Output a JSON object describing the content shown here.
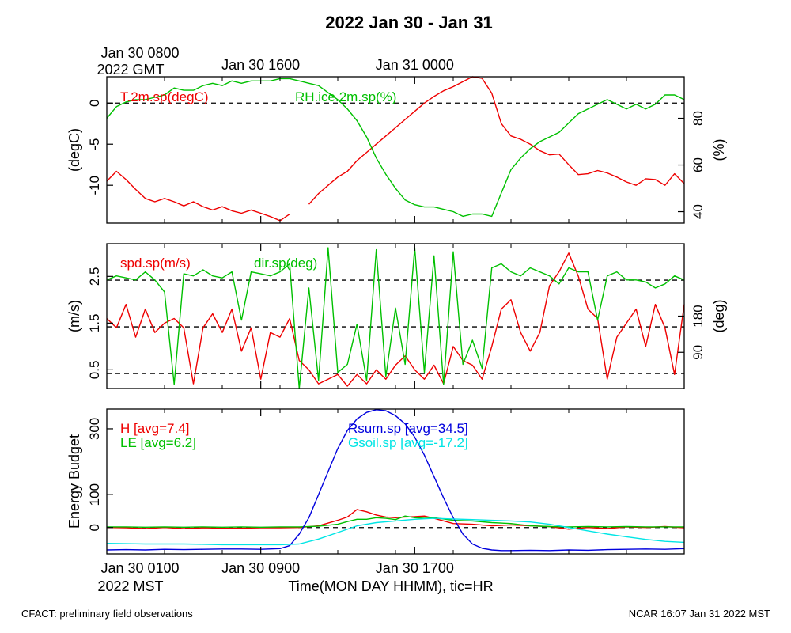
{
  "title": "2022 Jan 30 - Jan 31",
  "top_time_axis": {
    "start_label_line1": "Jan 30 0800",
    "start_label_line2": "2022 GMT",
    "labels": [
      "Jan 30 1600",
      "Jan 31 0000"
    ]
  },
  "bottom_time_axis": {
    "start_label_line1": "Jan 30 0100",
    "start_label_line2": "2022 MST",
    "labels": [
      "Jan 30 0900",
      "Jan 30 1700"
    ],
    "title": "Time(MON DAY HHMM), tic=HR"
  },
  "footer": {
    "left": "CFACT: preliminary field observations",
    "right": "NCAR 16:07 Jan 31 2022 MST"
  },
  "colors": {
    "red": "#ee0000",
    "green": "#00c000",
    "blue": "#0000dd",
    "cyan": "#00e5e5",
    "black": "#000000"
  },
  "chart_data": [
    {
      "type": "line",
      "panel": "temperature-humidity",
      "x_unit": "hours since Jan 30 0100 MST",
      "xlim": [
        0,
        30
      ],
      "ylabel_left": "(degC)",
      "ylabel_right": "(%)",
      "ylim_left": [
        -14.6,
        3.2
      ],
      "ylim_right": [
        35.1,
        97.8
      ],
      "yticks_left": [
        0,
        -5,
        -10
      ],
      "yticks_right": [
        80,
        60,
        40
      ],
      "reference_lines_left": [
        0
      ],
      "series": [
        {
          "name": "T.2m.sp(degC)",
          "axis": "left",
          "color": "#ee0000",
          "x": [
            0,
            0.5,
            1,
            1.5,
            2,
            2.5,
            3,
            3.5,
            4,
            4.5,
            5,
            5.5,
            6,
            6.5,
            7,
            7.5,
            8,
            8.5,
            9,
            9.5,
            10,
            10.5,
            11,
            11.5,
            12,
            12.5,
            13,
            13.5,
            14,
            14.5,
            15,
            15.5,
            16,
            16.5,
            17,
            17.5,
            18,
            18.5,
            19,
            19.5,
            20,
            20.5,
            21,
            21.5,
            22,
            22.5,
            23,
            23.5,
            24,
            24.5,
            25,
            25.5,
            26,
            26.5,
            27,
            27.5,
            28,
            28.5,
            29,
            29.5,
            30
          ],
          "values": [
            -9.5,
            -8.3,
            -9.3,
            -10.5,
            -11.6,
            -12.0,
            -11.6,
            -12.0,
            -12.5,
            -12.0,
            -12.6,
            -13.0,
            -12.6,
            -13.1,
            -13.4,
            -13.0,
            -13.4,
            -13.8,
            -14.3,
            -13.5,
            null,
            -12.3,
            -11.0,
            -10.0,
            -9.0,
            -8.3,
            -7.0,
            -6.0,
            -5.0,
            -4.0,
            -3.0,
            -2.0,
            -1.0,
            0.0,
            0.8,
            1.5,
            2.0,
            2.6,
            3.2,
            3.0,
            1.2,
            -2.5,
            -4.0,
            -4.4,
            -5.0,
            -5.8,
            -6.3,
            -6.2,
            -7.5,
            -8.7,
            -8.6,
            -8.2,
            -8.5,
            -9.0,
            -9.6,
            -10.0,
            -9.2,
            -9.3,
            -10.0,
            -8.6,
            -9.8
          ]
        },
        {
          "name": "RH.ice.2m.sp(%)",
          "axis": "right",
          "color": "#00c000",
          "x": [
            0,
            0.5,
            1,
            1.5,
            2,
            2.5,
            3,
            3.5,
            4,
            4.5,
            5,
            5.5,
            6,
            6.5,
            7,
            7.5,
            8,
            8.5,
            9,
            9.5,
            10,
            10.5,
            11,
            11.5,
            12,
            12.5,
            13,
            13.5,
            14,
            14.5,
            15,
            15.5,
            16,
            16.5,
            17,
            17.5,
            18,
            18.5,
            19,
            19.5,
            20,
            20.5,
            21,
            21.5,
            22,
            22.5,
            23,
            23.5,
            24,
            24.5,
            25,
            25.5,
            26,
            26.5,
            27,
            27.5,
            28,
            28.5,
            29,
            29.5,
            30
          ],
          "values": [
            80,
            85,
            87,
            88,
            88,
            89,
            90,
            93,
            92,
            92,
            94,
            95,
            94,
            96,
            95,
            96,
            96,
            96,
            97,
            97,
            96,
            95,
            94,
            91,
            88,
            84,
            79,
            72,
            63,
            56,
            50,
            45,
            43,
            42,
            42,
            41,
            40,
            38,
            39,
            39,
            38,
            48,
            58,
            63,
            67,
            70,
            72,
            74,
            78,
            82,
            84,
            86,
            88,
            86,
            84,
            86,
            84,
            86,
            90,
            90,
            88
          ]
        }
      ]
    },
    {
      "type": "line",
      "panel": "wind",
      "x_unit": "hours since Jan 30 0100 MST",
      "xlim": [
        0,
        30
      ],
      "ylabel_left": "(m/s)",
      "ylabel_right": "(deg)",
      "ylim_left": [
        0.1,
        3.2
      ],
      "ylim_right": [
        0,
        360
      ],
      "yticks_left": [
        2.5,
        1.5,
        0.5
      ],
      "yticks_right": [
        180,
        90
      ],
      "reference_lines_left": [
        2.42,
        1.42,
        0.42
      ],
      "series": [
        {
          "name": "spd.sp(m/s)",
          "axis": "left",
          "color": "#ee0000",
          "x": [
            0,
            0.5,
            1,
            1.5,
            2,
            2.5,
            3,
            3.5,
            4,
            4.5,
            5,
            5.5,
            6,
            6.5,
            7,
            7.5,
            8,
            8.5,
            9,
            9.5,
            10,
            10.5,
            11,
            11.5,
            12,
            12.5,
            13,
            13.5,
            14,
            14.5,
            15,
            15.5,
            16,
            16.5,
            17,
            17.5,
            18,
            18.5,
            19,
            19.5,
            20,
            20.5,
            21,
            21.5,
            22,
            22.5,
            23,
            23.5,
            24,
            24.5,
            25,
            25.5,
            26,
            26.5,
            27,
            27.5,
            28,
            28.5,
            29,
            29.5,
            30
          ],
          "values": [
            1.6,
            1.4,
            1.9,
            1.2,
            1.8,
            1.3,
            1.5,
            1.6,
            1.4,
            0.2,
            1.4,
            1.7,
            1.3,
            1.8,
            0.9,
            1.4,
            0.3,
            1.3,
            1.2,
            1.6,
            0.7,
            0.5,
            0.2,
            0.3,
            0.4,
            0.15,
            0.4,
            0.2,
            0.5,
            0.3,
            0.6,
            0.8,
            0.5,
            0.3,
            0.6,
            0.2,
            1.0,
            0.7,
            0.6,
            0.3,
            1.0,
            1.8,
            2.0,
            1.3,
            0.9,
            1.3,
            2.3,
            2.6,
            3.0,
            2.5,
            1.8,
            1.6,
            0.3,
            1.2,
            1.5,
            1.8,
            1.0,
            1.9,
            1.4,
            0.4,
            1.9
          ]
        },
        {
          "name": "dir.sp(deg)",
          "axis": "right",
          "color": "#00c000",
          "x": [
            0,
            0.5,
            1,
            1.5,
            2,
            2.5,
            3,
            3.5,
            4,
            4.5,
            5,
            5.5,
            6,
            6.5,
            7,
            7.5,
            8,
            8.5,
            9,
            9.5,
            10,
            10.5,
            11,
            11.5,
            12,
            12.5,
            13,
            13.5,
            14,
            14.5,
            15,
            15.5,
            16,
            16.5,
            17,
            17.5,
            18,
            18.5,
            19,
            19.5,
            20,
            20.5,
            21,
            21.5,
            22,
            22.5,
            23,
            23.5,
            24,
            24.5,
            25,
            25.5,
            26,
            26.5,
            27,
            27.5,
            28,
            28.5,
            29,
            29.5,
            30
          ],
          "values": [
            270,
            280,
            275,
            270,
            290,
            270,
            240,
            10,
            285,
            280,
            295,
            280,
            275,
            290,
            170,
            290,
            285,
            280,
            290,
            310,
            0,
            250,
            20,
            350,
            40,
            60,
            160,
            20,
            345,
            30,
            200,
            60,
            350,
            40,
            330,
            10,
            340,
            60,
            120,
            50,
            300,
            310,
            290,
            280,
            300,
            290,
            280,
            260,
            300,
            290,
            290,
            170,
            280,
            290,
            270,
            270,
            265,
            250,
            260,
            280,
            270
          ]
        }
      ]
    },
    {
      "type": "line",
      "panel": "energy-budget",
      "x_unit": "hours since Jan 30 0100 MST",
      "xlim": [
        0,
        30
      ],
      "ylabel_left": "Energy Budget",
      "ylim": [
        -80,
        360
      ],
      "yticks": [
        300,
        100,
        0
      ],
      "reference_lines": [
        0
      ],
      "series": [
        {
          "name": "H",
          "legend": "H [avg=7.4]",
          "color": "#ee0000",
          "x": [
            0,
            1,
            2,
            3,
            4,
            5,
            6,
            7,
            8,
            9,
            10,
            11,
            12,
            12.5,
            13,
            13.5,
            14,
            14.5,
            15,
            15.5,
            16,
            16.5,
            17,
            18,
            19,
            20,
            21,
            22,
            23,
            24,
            25,
            26,
            27,
            28,
            29,
            30
          ],
          "values": [
            0,
            -1,
            -3,
            0,
            -3,
            -1,
            -2,
            -2,
            -1,
            -1,
            0,
            5,
            22,
            32,
            55,
            48,
            38,
            32,
            30,
            32,
            33,
            35,
            28,
            12,
            10,
            5,
            8,
            5,
            3,
            -5,
            0,
            -3,
            2,
            0,
            3,
            -1
          ]
        },
        {
          "name": "LE",
          "legend": "LE [avg=6.2]",
          "color": "#00c000",
          "x": [
            0,
            1,
            2,
            3,
            4,
            5,
            6,
            7,
            8,
            9,
            10,
            11,
            12,
            12.5,
            13,
            13.5,
            14,
            14.5,
            15,
            15.5,
            16,
            16.5,
            17,
            18,
            19,
            20,
            21,
            22,
            23,
            24,
            25,
            26,
            27,
            28,
            29,
            30
          ],
          "values": [
            2,
            2,
            1,
            2,
            1,
            2,
            1,
            2,
            1,
            2,
            2,
            4,
            10,
            18,
            25,
            25,
            30,
            28,
            24,
            35,
            30,
            28,
            30,
            22,
            20,
            15,
            12,
            5,
            3,
            2,
            3,
            2,
            3,
            2,
            2,
            2
          ]
        },
        {
          "name": "Rsum.sp",
          "legend": "Rsum.sp [avg=34.5]",
          "color": "#0000dd",
          "x": [
            0,
            1,
            2,
            3,
            4,
            5,
            6,
            7,
            8,
            9,
            9.5,
            10,
            10.5,
            11,
            11.5,
            12,
            12.5,
            13,
            13.5,
            14,
            14.5,
            15,
            15.5,
            16,
            16.5,
            17,
            17.5,
            18,
            18.5,
            19,
            19.5,
            20,
            20.5,
            21,
            22,
            23,
            24,
            25,
            26,
            27,
            28,
            29,
            30
          ],
          "values": [
            -68,
            -67,
            -68,
            -66,
            -67,
            -66,
            -65,
            -65,
            -66,
            -64,
            -55,
            -20,
            30,
            100,
            170,
            240,
            295,
            330,
            350,
            358,
            355,
            340,
            315,
            275,
            220,
            155,
            90,
            30,
            -20,
            -50,
            -63,
            -68,
            -70,
            -70,
            -69,
            -70,
            -68,
            -69,
            -67,
            -66,
            -65,
            -66,
            -64
          ]
        },
        {
          "name": "Gsoil.sp",
          "legend": "Gsoil.sp [avg=-17.2]",
          "color": "#00e5e5",
          "x": [
            0,
            1,
            2,
            3,
            4,
            5,
            6,
            7,
            8,
            9,
            10,
            11,
            12,
            13,
            14,
            15,
            16,
            17,
            18,
            19,
            20,
            21,
            22,
            23,
            24,
            25,
            26,
            27,
            28,
            29,
            30
          ],
          "values": [
            -48,
            -49,
            -50,
            -50,
            -50,
            -51,
            -52,
            -52,
            -52,
            -52,
            -50,
            -35,
            -15,
            5,
            15,
            20,
            25,
            28,
            26,
            24,
            22,
            20,
            17,
            10,
            0,
            -10,
            -20,
            -28,
            -36,
            -42,
            -45
          ]
        }
      ]
    }
  ]
}
